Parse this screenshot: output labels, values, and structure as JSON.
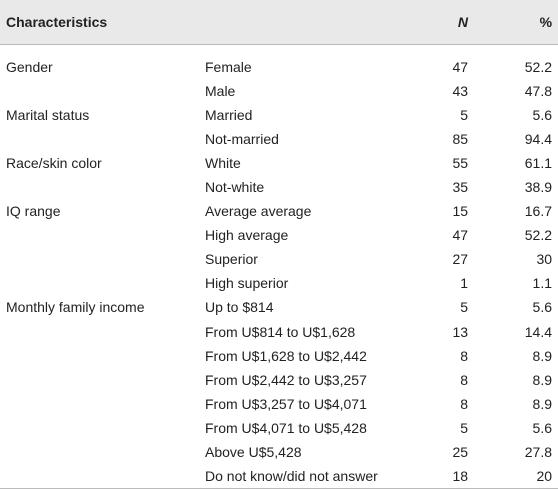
{
  "header": {
    "characteristics": "Characteristics",
    "n": "N",
    "pct": "%"
  },
  "groups": [
    {
      "label": "Gender",
      "rows": [
        {
          "item": "Female",
          "n": "47",
          "pct": "52.2"
        },
        {
          "item": "Male",
          "n": "43",
          "pct": "47.8"
        }
      ]
    },
    {
      "label": "Marital status",
      "rows": [
        {
          "item": "Married",
          "n": "5",
          "pct": "5.6"
        },
        {
          "item": "Not-married",
          "n": "85",
          "pct": "94.4"
        }
      ]
    },
    {
      "label": "Race/skin color",
      "rows": [
        {
          "item": "White",
          "n": "55",
          "pct": "61.1"
        },
        {
          "item": "Not-white",
          "n": "35",
          "pct": "38.9"
        }
      ]
    },
    {
      "label": "IQ range",
      "rows": [
        {
          "item": "Average average",
          "n": "15",
          "pct": "16.7"
        },
        {
          "item": "High average",
          "n": "47",
          "pct": "52.2"
        },
        {
          "item": "Superior",
          "n": "27",
          "pct": "30"
        },
        {
          "item": "High superior",
          "n": "1",
          "pct": "1.1"
        }
      ]
    },
    {
      "label": "Monthly family income",
      "rows": [
        {
          "item": "Up to $814",
          "n": "5",
          "pct": "5.6"
        },
        {
          "item": "From U$814 to U$1,628",
          "n": "13",
          "pct": "14.4"
        },
        {
          "item": "From U$1,628 to U$2,442",
          "n": "8",
          "pct": "8.9"
        },
        {
          "item": "From U$2,442 to U$3,257",
          "n": "8",
          "pct": "8.9"
        },
        {
          "item": "From U$3,257 to U$4,071",
          "n": "8",
          "pct": "8.9"
        },
        {
          "item": "From U$4,071 to U$5,428",
          "n": "5",
          "pct": "5.6"
        },
        {
          "item": "Above U$5,428",
          "n": "25",
          "pct": "27.8"
        },
        {
          "item": "Do not know/did not answer",
          "n": "18",
          "pct": "20"
        }
      ]
    }
  ]
}
